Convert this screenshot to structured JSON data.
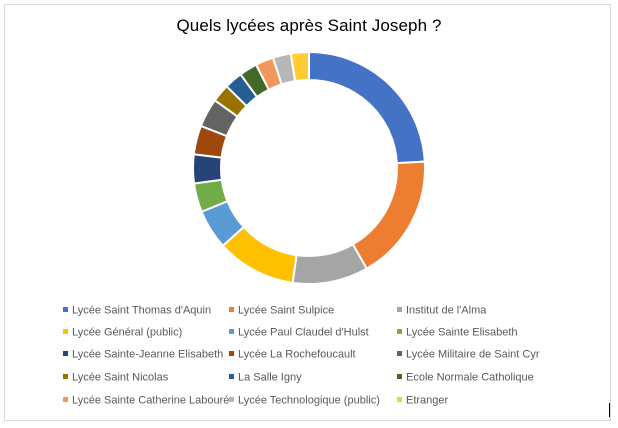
{
  "chart_data": {
    "type": "pie",
    "style": "doughnut",
    "title": "Quels lycées après Saint Joseph ?",
    "legend_position": "bottom",
    "series": [
      {
        "name": "Lycée Saint Thomas d'Aquin",
        "value": 24.0,
        "color": "#4472C4"
      },
      {
        "name": "Lycée Saint Sulpice",
        "value": 17.5,
        "color": "#ED7D31"
      },
      {
        "name": "Institut de l'Alma",
        "value": 10.5,
        "color": "#A5A5A5"
      },
      {
        "name": "Lycée Général (public)",
        "value": 11.0,
        "color": "#FFC000"
      },
      {
        "name": "Lycée Paul Claudel d'Hulst",
        "value": 5.5,
        "color": "#5B9BD5"
      },
      {
        "name": "Lycée Sainte Elisabeth",
        "value": 4.0,
        "color": "#70AD47"
      },
      {
        "name": "Lycée Sainte-Jeanne Elisabeth",
        "value": 4.0,
        "color": "#264478"
      },
      {
        "name": "Lycée La Rochefoucault",
        "value": 4.0,
        "color": "#9E480E"
      },
      {
        "name": "Lycée Militaire de Saint Cyr",
        "value": 4.0,
        "color": "#636363"
      },
      {
        "name": "Lycée Saint Nicolas",
        "value": 2.5,
        "color": "#997300"
      },
      {
        "name": "La Salle Igny",
        "value": 2.5,
        "color": "#255E91"
      },
      {
        "name": "Ecole Normale Catholique",
        "value": 2.5,
        "color": "#43682B"
      },
      {
        "name": "Lycée Sainte Catherine Labouré",
        "value": 2.5,
        "color": "#F1975A"
      },
      {
        "name": "Lycée Technologique (public)",
        "value": 2.5,
        "color": "#B7B7B7"
      },
      {
        "name": "Etranger",
        "value": 2.5,
        "color": "#FFCD33"
      }
    ]
  }
}
